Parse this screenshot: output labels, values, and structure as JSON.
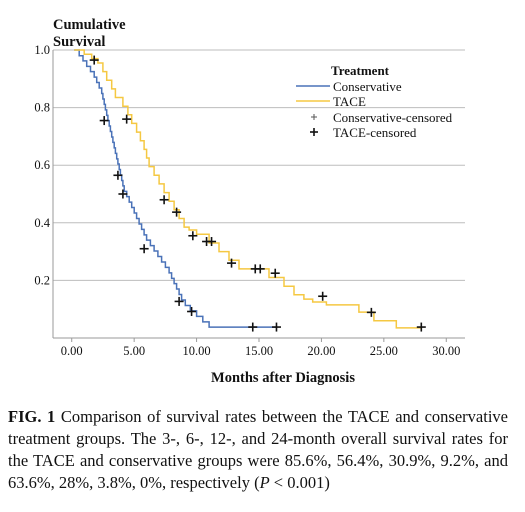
{
  "chart_data": {
    "type": "line",
    "step": true,
    "ylabel_lines": [
      "Cumulative",
      "Survival"
    ],
    "xlabel": "Months after Diagnosis",
    "xlim": [
      -1.5,
      31.5
    ],
    "ylim": [
      0.0,
      1.0
    ],
    "xticks": [
      0,
      5,
      10,
      15,
      20,
      25,
      30
    ],
    "xtick_labels": [
      "0.00",
      "5.00",
      "10.00",
      "15.00",
      "20.00",
      "25.00",
      "30.00"
    ],
    "yticks": [
      0.2,
      0.4,
      0.6,
      0.8,
      1.0
    ],
    "ytick_labels": [
      "0.2",
      "0.4",
      "0.6",
      "0.8",
      "1.0"
    ],
    "grid": "horizontal",
    "legend": {
      "title": "Treatment",
      "placement": "top-right",
      "entries": [
        "Conservative",
        "TACE",
        "Conservative-censored",
        "TACE-censored"
      ]
    },
    "series": [
      {
        "name": "Conservative",
        "color": "#4a72b8",
        "steps": [
          [
            0.2,
            1.0
          ],
          [
            0.6,
            0.98
          ],
          [
            0.9,
            0.962
          ],
          [
            1.2,
            0.943
          ],
          [
            1.5,
            0.925
          ],
          [
            1.8,
            0.906
          ],
          [
            2.0,
            0.887
          ],
          [
            2.2,
            0.868
          ],
          [
            2.4,
            0.849
          ],
          [
            2.5,
            0.83
          ],
          [
            2.6,
            0.811
          ],
          [
            2.7,
            0.792
          ],
          [
            2.8,
            0.773
          ],
          [
            2.9,
            0.755
          ],
          [
            3.0,
            0.736
          ],
          [
            3.1,
            0.717
          ],
          [
            3.2,
            0.698
          ],
          [
            3.3,
            0.679
          ],
          [
            3.4,
            0.66
          ],
          [
            3.5,
            0.641
          ],
          [
            3.6,
            0.622
          ],
          [
            3.7,
            0.604
          ],
          [
            3.8,
            0.585
          ],
          [
            3.9,
            0.566
          ],
          [
            4.0,
            0.547
          ],
          [
            4.1,
            0.528
          ],
          [
            4.2,
            0.509
          ],
          [
            4.4,
            0.491
          ],
          [
            4.6,
            0.472
          ],
          [
            4.8,
            0.453
          ],
          [
            5.0,
            0.434
          ],
          [
            5.2,
            0.415
          ],
          [
            5.4,
            0.396
          ],
          [
            5.6,
            0.377
          ],
          [
            5.8,
            0.358
          ],
          [
            6.0,
            0.34
          ],
          [
            6.3,
            0.321
          ],
          [
            6.6,
            0.302
          ],
          [
            6.9,
            0.283
          ],
          [
            7.2,
            0.264
          ],
          [
            7.5,
            0.245
          ],
          [
            7.8,
            0.226
          ],
          [
            8.0,
            0.207
          ],
          [
            8.2,
            0.189
          ],
          [
            8.4,
            0.17
          ],
          [
            8.6,
            0.151
          ],
          [
            8.8,
            0.132
          ],
          [
            9.1,
            0.113
          ],
          [
            9.5,
            0.094
          ],
          [
            10.0,
            0.075
          ],
          [
            10.5,
            0.056
          ],
          [
            11.0,
            0.038
          ],
          [
            16.4,
            0.038
          ]
        ],
        "censored": [
          [
            1.8,
            0.965
          ],
          [
            2.6,
            0.755
          ],
          [
            3.7,
            0.565
          ],
          [
            4.1,
            0.5
          ],
          [
            5.8,
            0.31
          ],
          [
            8.6,
            0.127
          ],
          [
            9.6,
            0.092
          ],
          [
            14.5,
            0.038
          ],
          [
            16.4,
            0.038
          ]
        ]
      },
      {
        "name": "TACE",
        "color": "#f5c842",
        "steps": [
          [
            0.2,
            1.0
          ],
          [
            1.0,
            0.985
          ],
          [
            1.6,
            0.97
          ],
          [
            2.1,
            0.955
          ],
          [
            2.5,
            0.925
          ],
          [
            2.8,
            0.895
          ],
          [
            3.2,
            0.865
          ],
          [
            3.5,
            0.835
          ],
          [
            4.1,
            0.805
          ],
          [
            4.5,
            0.775
          ],
          [
            4.8,
            0.745
          ],
          [
            5.2,
            0.715
          ],
          [
            5.5,
            0.685
          ],
          [
            5.8,
            0.655
          ],
          [
            6.0,
            0.625
          ],
          [
            6.2,
            0.595
          ],
          [
            6.6,
            0.565
          ],
          [
            7.0,
            0.535
          ],
          [
            7.4,
            0.505
          ],
          [
            7.8,
            0.475
          ],
          [
            8.2,
            0.445
          ],
          [
            8.6,
            0.415
          ],
          [
            9.0,
            0.385
          ],
          [
            9.4,
            0.375
          ],
          [
            10.0,
            0.36
          ],
          [
            11.0,
            0.33
          ],
          [
            11.8,
            0.3
          ],
          [
            12.6,
            0.27
          ],
          [
            13.4,
            0.24
          ],
          [
            15.8,
            0.21
          ],
          [
            17.0,
            0.18
          ],
          [
            17.8,
            0.15
          ],
          [
            18.6,
            0.135
          ],
          [
            19.3,
            0.125
          ],
          [
            20.4,
            0.115
          ],
          [
            23.0,
            0.09
          ],
          [
            24.2,
            0.06
          ],
          [
            26.0,
            0.035
          ],
          [
            28.0,
            0.035
          ]
        ],
        "censored": [
          [
            4.4,
            0.76
          ],
          [
            7.4,
            0.48
          ],
          [
            8.4,
            0.437
          ],
          [
            9.7,
            0.355
          ],
          [
            10.8,
            0.335
          ],
          [
            11.2,
            0.335
          ],
          [
            12.8,
            0.26
          ],
          [
            14.7,
            0.24
          ],
          [
            15.1,
            0.24
          ],
          [
            16.3,
            0.225
          ],
          [
            20.1,
            0.145
          ],
          [
            24.0,
            0.089
          ],
          [
            28.0,
            0.038
          ]
        ]
      }
    ]
  },
  "caption": {
    "fig_label": "FIG. 1",
    "text": "Comparison of survival rates between the TACE and conservative treatment groups. The 3-, 6-, 12-, and 24-month overall survival rates for the TACE and conservative groups were 85.6%, 56.4%, 30.9%, 9.2%, and 63.6%, 28%, 3.8%, 0%, respectively (",
    "p_symbol": "P",
    "p_tail": " < 0.001)"
  }
}
